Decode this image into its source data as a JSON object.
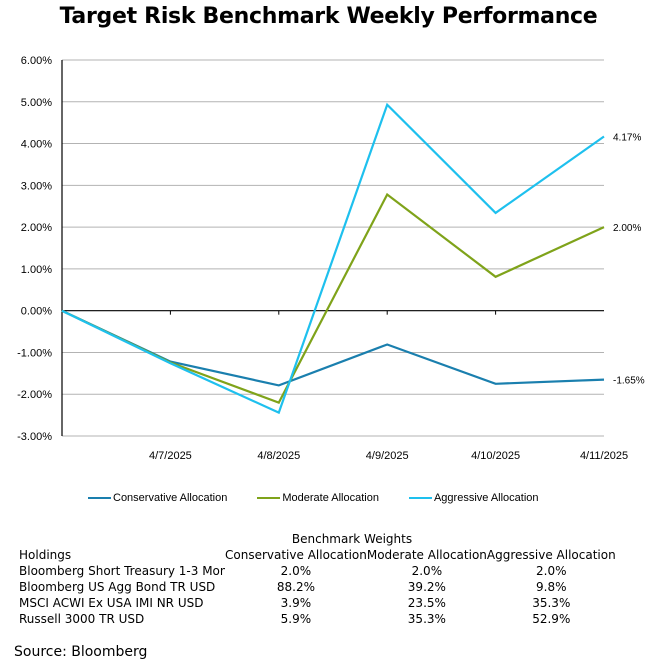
{
  "chart_data": {
    "type": "line",
    "title": "Target Risk Benchmark Weekly Performance",
    "xlabel": "",
    "ylabel": "",
    "categories": [
      "",
      "4/7/2025",
      "4/8/2025",
      "4/9/2025",
      "4/10/2025",
      "4/11/2025"
    ],
    "ylim": [
      -3.0,
      6.0
    ],
    "yticks": [
      6,
      5,
      4,
      3,
      2,
      1,
      0,
      -1,
      -2,
      -3
    ],
    "ytick_labels": [
      "6.00%",
      "5.00%",
      "4.00%",
      "3.00%",
      "2.00%",
      "1.00%",
      "0.00%",
      "-1.00%",
      "-2.00%",
      "-3.00%"
    ],
    "grid": true,
    "legend_position": "bottom",
    "series": [
      {
        "name": "Conservative Allocation",
        "color": "#1a7fae",
        "values": [
          0.0,
          -1.22,
          -1.79,
          -0.81,
          -1.75,
          -1.65
        ],
        "end_label": "-1.65%"
      },
      {
        "name": "Moderate Allocation",
        "color": "#7fa31a",
        "values": [
          0.0,
          -1.24,
          -2.2,
          2.78,
          0.81,
          2.0
        ],
        "end_label": "2.00%"
      },
      {
        "name": "Aggressive Allocation",
        "color": "#1ec0ee",
        "values": [
          0.0,
          -1.26,
          -2.44,
          4.93,
          2.34,
          4.17
        ],
        "end_label": "4.17%"
      }
    ]
  },
  "weights": {
    "caption": "Benchmark Weights",
    "headers": [
      "Holdings",
      "Conservative Allocation",
      "Moderate Allocation",
      "Aggressive Allocation"
    ],
    "rows": [
      [
        "Bloomberg Short Treasury 1-3 Mon",
        "2.0%",
        "2.0%",
        "2.0%"
      ],
      [
        "Bloomberg US Agg Bond TR USD",
        "88.2%",
        "39.2%",
        "9.8%"
      ],
      [
        "MSCI ACWI Ex USA IMI NR USD",
        "3.9%",
        "23.5%",
        "35.3%"
      ],
      [
        "Russell 3000 TR USD",
        "5.9%",
        "35.3%",
        "52.9%"
      ]
    ]
  },
  "source": "Source: Bloomberg"
}
